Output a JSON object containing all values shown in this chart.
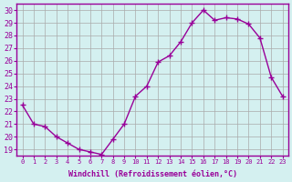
{
  "x": [
    0,
    1,
    2,
    3,
    4,
    5,
    6,
    7,
    8,
    9,
    10,
    11,
    12,
    13,
    14,
    15,
    16,
    17,
    18,
    19,
    20,
    21,
    22,
    23
  ],
  "y": [
    22.5,
    21.0,
    20.8,
    20.0,
    19.5,
    19.0,
    18.8,
    18.6,
    19.8,
    21.0,
    23.2,
    24.0,
    25.9,
    26.4,
    27.5,
    29.0,
    30.0,
    29.2,
    29.4,
    29.3,
    28.9,
    27.8,
    24.7,
    23.2
  ],
  "xlim": [
    -0.5,
    23.5
  ],
  "ylim": [
    18.5,
    30.5
  ],
  "yticks": [
    19,
    20,
    21,
    22,
    23,
    24,
    25,
    26,
    27,
    28,
    29,
    30
  ],
  "xticks": [
    0,
    1,
    2,
    3,
    4,
    5,
    6,
    7,
    8,
    9,
    10,
    11,
    12,
    13,
    14,
    15,
    16,
    17,
    18,
    19,
    20,
    21,
    22,
    23
  ],
  "xlabel": "Windchill (Refroidissement éolien,°C)",
  "line_color": "#990099",
  "marker": "+",
  "bg_color": "#d4f0f0",
  "grid_color": "#aaaaaa",
  "tick_color": "#990099",
  "label_color": "#990099"
}
